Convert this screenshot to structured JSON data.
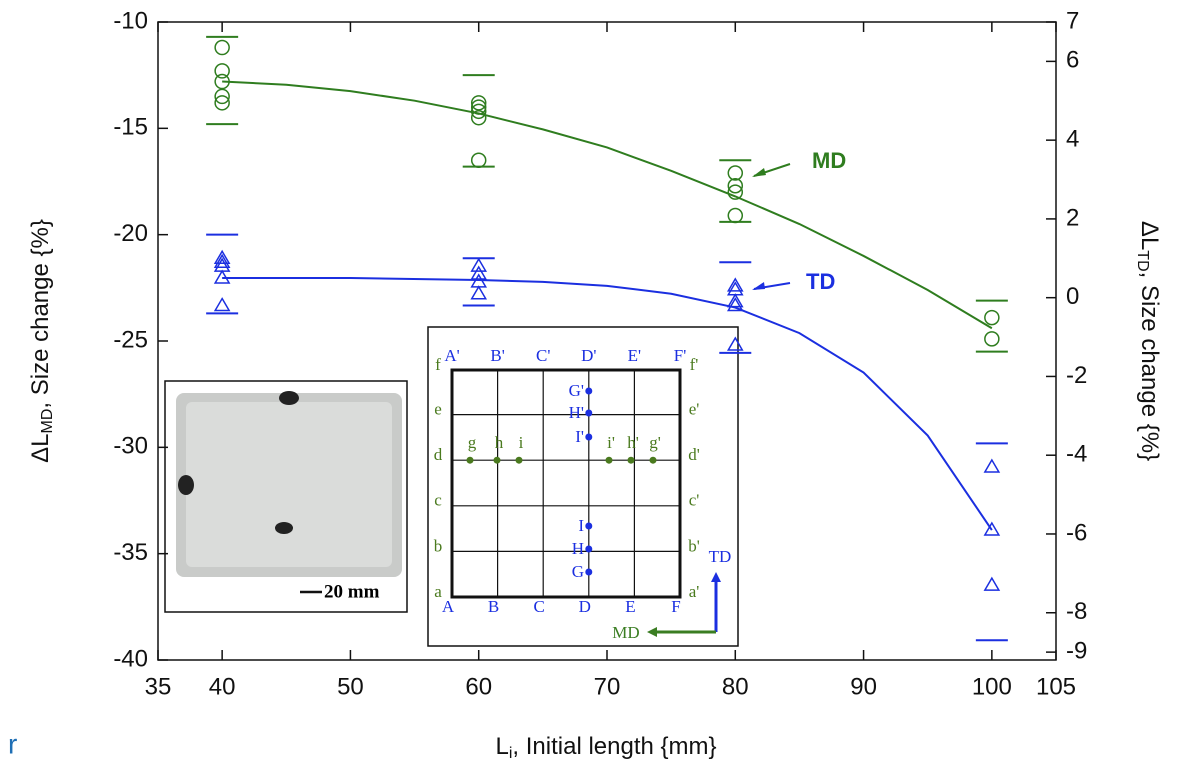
{
  "chart_data": {
    "type": "scatter",
    "x_label": {
      "text": "L",
      "sub": "i",
      "rest": ", Initial length {mm}"
    },
    "y_label": {
      "text": "ΔL",
      "sub": "MD",
      "rest": ", Size change {%}"
    },
    "y2_label": {
      "text": "ΔL",
      "sub": "TD",
      "rest": ", Size change {%}"
    },
    "xlim": [
      35,
      105
    ],
    "xticks": [
      35,
      40,
      50,
      60,
      70,
      80,
      90,
      100,
      105
    ],
    "ylim": [
      -40,
      -10
    ],
    "yticks": [
      -40,
      -35,
      -30,
      -25,
      -20,
      -15,
      -10
    ],
    "y2lim": [
      -9.2,
      7
    ],
    "y2ticks": [
      -9,
      -8,
      -6,
      -4,
      -2,
      0,
      2,
      4,
      6,
      7
    ],
    "series": [
      {
        "color": "#2f7d1f",
        "marker": "circle",
        "x": [
          40,
          40,
          40,
          40,
          40,
          60,
          60,
          60,
          60,
          60,
          80,
          80,
          80,
          80,
          100,
          100
        ],
        "values": [
          -11.2,
          -12.3,
          -12.8,
          -13.5,
          -13.8,
          -13.8,
          -14.0,
          -14.2,
          -14.5,
          -16.5,
          -17.1,
          -17.7,
          -18.0,
          -19.1,
          -23.9,
          -24.9
        ]
      },
      {
        "color": "#2f7d1f",
        "marker": "hline",
        "x": [
          40,
          40,
          60,
          60,
          80,
          80,
          100,
          100
        ],
        "values": [
          -10.7,
          -14.8,
          -12.5,
          -16.8,
          -16.5,
          -19.4,
          -23.1,
          -25.5
        ]
      },
      {
        "color": "#2f7d1f",
        "marker": "line",
        "x": [
          40,
          45,
          50,
          55,
          60,
          65,
          70,
          75,
          80,
          85,
          90,
          95,
          100
        ],
        "values": [
          -12.8,
          -12.95,
          -13.25,
          -13.7,
          -14.3,
          -15.05,
          -15.9,
          -17.0,
          -18.2,
          -19.5,
          -21.0,
          -22.6,
          -24.4
        ]
      },
      {
        "color": "#1b2fe0",
        "marker": "triangle",
        "axis": "y2",
        "x": [
          40,
          40,
          40,
          40,
          40,
          60,
          60,
          60,
          60,
          80,
          80,
          80,
          80,
          80,
          100,
          100,
          100
        ],
        "values": [
          1.0,
          0.9,
          0.8,
          0.5,
          -0.2,
          0.8,
          0.6,
          0.4,
          0.1,
          0.3,
          0.2,
          -0.1,
          -0.2,
          -1.2,
          -4.3,
          -5.9,
          -7.3
        ]
      },
      {
        "color": "#1b2fe0",
        "marker": "hline",
        "axis": "y2",
        "x": [
          40,
          40,
          60,
          60,
          80,
          80,
          100,
          100
        ],
        "values": [
          1.6,
          -0.4,
          1.0,
          -0.2,
          0.9,
          -1.4,
          -3.7,
          -8.7
        ]
      },
      {
        "color": "#1b2fe0",
        "marker": "line",
        "axis": "y2",
        "x": [
          40,
          50,
          60,
          65,
          70,
          75,
          80,
          85,
          90,
          95,
          100
        ],
        "values": [
          0.5,
          0.5,
          0.45,
          0.4,
          0.3,
          0.1,
          -0.25,
          -0.9,
          -1.9,
          -3.5,
          -5.9
        ]
      }
    ],
    "annotations": [
      {
        "text": "MD",
        "color": "#2f7d1f"
      },
      {
        "text": "TD",
        "color": "#1b2fe0"
      }
    ]
  },
  "inset": {
    "scale_label": "20 mm",
    "top": [
      "A'",
      "B'",
      "C'",
      "D'",
      "E'",
      "F'"
    ],
    "bottom": [
      "A",
      "B",
      "C",
      "D",
      "E",
      "F"
    ],
    "left": [
      "a",
      "b",
      "c",
      "d",
      "e",
      "f"
    ],
    "right": [
      "a'",
      "b'",
      "c'",
      "d'",
      "e'",
      "f'"
    ],
    "column_points": [
      "G'",
      "H'",
      "I'",
      "I",
      "H",
      "G"
    ],
    "row_points": [
      "g",
      "h",
      "i",
      "i'",
      "h'",
      "g'"
    ],
    "arrow_up": "TD",
    "arrow_left": "MD"
  },
  "fragment": "r"
}
